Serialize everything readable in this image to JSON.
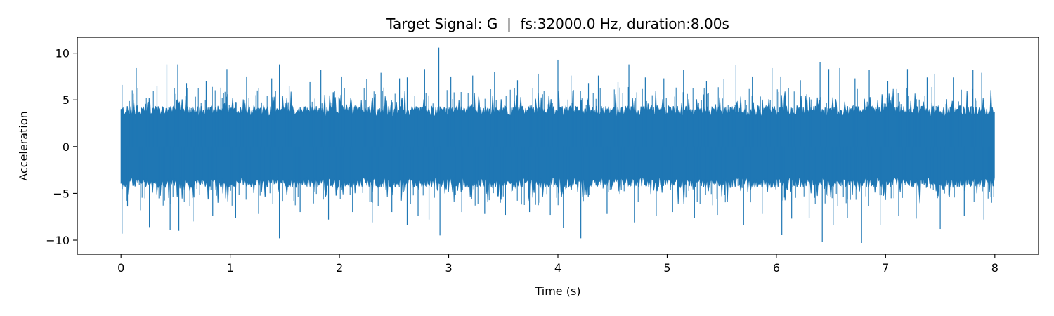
{
  "chart_data": {
    "type": "line",
    "title": "Target Signal: G  |  fs:32000.0 Hz, duration:8.00s",
    "xlabel": "Time (s)",
    "ylabel": "Acceleration",
    "xlim": [
      -0.4,
      8.4
    ],
    "ylim": [
      -11.5,
      11.7
    ],
    "x_ticks": [
      0,
      1,
      2,
      3,
      4,
      5,
      6,
      7,
      8
    ],
    "y_ticks": [
      -10,
      -5,
      0,
      5,
      10
    ],
    "x_tick_labels": [
      "0",
      "1",
      "2",
      "3",
      "4",
      "5",
      "6",
      "7",
      "8"
    ],
    "y_tick_labels": [
      "−10",
      "−5",
      "0",
      "5",
      "10"
    ],
    "grid": false,
    "legend": "none",
    "series": [
      {
        "color": "#1f77b4",
        "fs_hz": 32000.0,
        "duration_s": 8.0,
        "x_start": 0.0,
        "x_end": 8.0,
        "dense_band": [
          -3.8,
          3.8
        ],
        "peaks": [
          [
            0.01,
            6.6
          ],
          [
            0.01,
            -9.3
          ],
          [
            0.06,
            -6.4
          ],
          [
            0.14,
            8.4
          ],
          [
            0.18,
            -6.8
          ],
          [
            0.26,
            -8.6
          ],
          [
            0.33,
            6.5
          ],
          [
            0.42,
            8.8
          ],
          [
            0.45,
            -8.9
          ],
          [
            0.52,
            8.8
          ],
          [
            0.53,
            -9.0
          ],
          [
            0.6,
            6.8
          ],
          [
            0.66,
            -8.0
          ],
          [
            0.78,
            7.0
          ],
          [
            0.84,
            -7.4
          ],
          [
            0.97,
            8.3
          ],
          [
            1.05,
            -7.6
          ],
          [
            1.15,
            7.5
          ],
          [
            1.26,
            -7.2
          ],
          [
            1.38,
            7.3
          ],
          [
            1.45,
            8.8
          ],
          [
            1.45,
            -9.8
          ],
          [
            1.54,
            6.5
          ],
          [
            1.64,
            -7.0
          ],
          [
            1.73,
            6.9
          ],
          [
            1.83,
            8.2
          ],
          [
            1.9,
            -7.8
          ],
          [
            2.02,
            7.5
          ],
          [
            2.12,
            -7.0
          ],
          [
            2.25,
            7.2
          ],
          [
            2.3,
            -8.1
          ],
          [
            2.38,
            7.9
          ],
          [
            2.48,
            -7.0
          ],
          [
            2.55,
            7.3
          ],
          [
            2.62,
            7.4
          ],
          [
            2.62,
            -8.4
          ],
          [
            2.72,
            -7.4
          ],
          [
            2.78,
            8.3
          ],
          [
            2.82,
            -7.8
          ],
          [
            2.91,
            10.6
          ],
          [
            2.92,
            -9.5
          ],
          [
            3.02,
            7.5
          ],
          [
            3.12,
            -7.0
          ],
          [
            3.22,
            7.6
          ],
          [
            3.33,
            -7.2
          ],
          [
            3.42,
            8.0
          ],
          [
            3.52,
            -7.3
          ],
          [
            3.63,
            7.1
          ],
          [
            3.74,
            -7.0
          ],
          [
            3.82,
            7.8
          ],
          [
            3.93,
            -7.3
          ],
          [
            4.0,
            9.3
          ],
          [
            4.05,
            -8.7
          ],
          [
            4.12,
            7.6
          ],
          [
            4.21,
            -9.8
          ],
          [
            4.28,
            6.8
          ],
          [
            4.37,
            7.6
          ],
          [
            4.45,
            -7.2
          ],
          [
            4.55,
            6.9
          ],
          [
            4.65,
            8.8
          ],
          [
            4.7,
            -8.1
          ],
          [
            4.8,
            7.4
          ],
          [
            4.9,
            -7.4
          ],
          [
            4.97,
            7.3
          ],
          [
            5.05,
            -7.0
          ],
          [
            5.15,
            8.2
          ],
          [
            5.25,
            -7.6
          ],
          [
            5.36,
            7.0
          ],
          [
            5.46,
            -7.3
          ],
          [
            5.52,
            7.2
          ],
          [
            5.63,
            8.7
          ],
          [
            5.7,
            -8.4
          ],
          [
            5.78,
            7.5
          ],
          [
            5.87,
            -7.2
          ],
          [
            5.96,
            8.4
          ],
          [
            6.04,
            7.5
          ],
          [
            6.05,
            -9.4
          ],
          [
            6.14,
            -7.7
          ],
          [
            6.22,
            7.1
          ],
          [
            6.3,
            -7.6
          ],
          [
            6.4,
            9.0
          ],
          [
            6.42,
            -10.2
          ],
          [
            6.48,
            8.3
          ],
          [
            6.52,
            -8.4
          ],
          [
            6.58,
            8.4
          ],
          [
            6.65,
            -7.6
          ],
          [
            6.72,
            7.3
          ],
          [
            6.78,
            -10.3
          ],
          [
            6.85,
            8.2
          ],
          [
            6.95,
            -8.4
          ],
          [
            7.02,
            7.0
          ],
          [
            7.12,
            -7.4
          ],
          [
            7.2,
            8.3
          ],
          [
            7.28,
            -7.7
          ],
          [
            7.38,
            7.4
          ],
          [
            7.45,
            7.8
          ],
          [
            7.5,
            -8.8
          ],
          [
            7.62,
            7.4
          ],
          [
            7.72,
            -7.4
          ],
          [
            7.8,
            8.2
          ],
          [
            7.88,
            7.9
          ],
          [
            7.9,
            -7.8
          ],
          [
            7.97,
            -6.0
          ]
        ]
      }
    ]
  }
}
